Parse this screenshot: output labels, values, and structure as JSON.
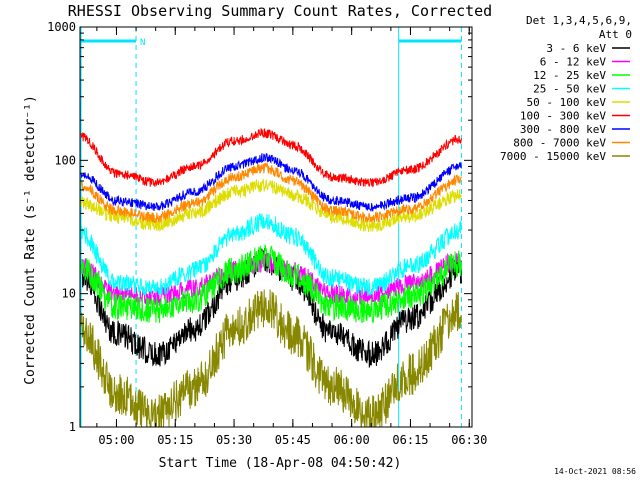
{
  "chart_data": {
    "type": "line",
    "title": "RHESSI Observing Summary Count Rates, Corrected",
    "xlabel": "Start Time (18-Apr-08 04:50:42)",
    "ylabel": "Corrected Count Rate (s⁻¹ detector⁻¹)",
    "ylog": true,
    "ylim": [
      1,
      1000
    ],
    "xlim": [
      "04:50:42",
      "06:30:42"
    ],
    "x_ticks": [
      "05:00",
      "05:15",
      "05:30",
      "05:45",
      "06:00",
      "06:15",
      "06:30"
    ],
    "y_ticks": [
      "1",
      "10",
      "100",
      "1000"
    ],
    "legend_title": [
      "Det 1,3,4,5,6,9,",
      "Att 0"
    ],
    "legend_position": "right",
    "timestamp": "14-Oct-2021 08:56",
    "flags": [
      {
        "label": "N",
        "start": "04:50:42",
        "end": "05:05:00"
      },
      {
        "label": "",
        "start": "06:12:00",
        "end": "06:28:00"
      }
    ],
    "series": [
      {
        "name": "3 - 6 keV",
        "color": "#000000",
        "x": [
          "04:51",
          "05:00",
          "05:10",
          "05:20",
          "05:30",
          "05:38",
          "05:45",
          "05:55",
          "06:05",
          "06:15",
          "06:28"
        ],
        "values": [
          14,
          5.0,
          3.5,
          5.5,
          13,
          18,
          13,
          5.0,
          3.5,
          6.5,
          15
        ]
      },
      {
        "name": "6 - 12 keV",
        "color": "#ff00ff",
        "x": [
          "04:51",
          "05:00",
          "05:10",
          "05:20",
          "05:30",
          "05:38",
          "05:45",
          "05:55",
          "06:05",
          "06:15",
          "06:28"
        ],
        "values": [
          16,
          10,
          9.5,
          11,
          15,
          17,
          15,
          10,
          9.5,
          12,
          18
        ]
      },
      {
        "name": "12 - 25 keV",
        "color": "#00ff00",
        "x": [
          "04:51",
          "05:00",
          "05:10",
          "05:20",
          "05:30",
          "05:38",
          "05:45",
          "05:55",
          "06:05",
          "06:15",
          "06:28"
        ],
        "values": [
          16,
          8,
          7.5,
          9,
          15,
          19,
          14,
          8,
          7.5,
          9.5,
          17
        ]
      },
      {
        "name": "25 - 50 keV",
        "color": "#00ffff",
        "x": [
          "04:51",
          "05:00",
          "05:10",
          "05:20",
          "05:30",
          "05:38",
          "05:45",
          "05:55",
          "06:05",
          "06:15",
          "06:28"
        ],
        "values": [
          28,
          12,
          11,
          15,
          28,
          35,
          27,
          13,
          11,
          16,
          30
        ]
      },
      {
        "name": "50 - 100 keV",
        "color": "#dddd00",
        "x": [
          "04:51",
          "05:00",
          "05:10",
          "05:20",
          "05:30",
          "05:38",
          "05:45",
          "05:55",
          "06:05",
          "06:15",
          "06:28"
        ],
        "values": [
          48,
          38,
          33,
          40,
          58,
          65,
          55,
          38,
          32,
          38,
          55
        ]
      },
      {
        "name": "100 - 300 keV",
        "color": "#ff0000",
        "x": [
          "04:51",
          "05:00",
          "05:10",
          "05:20",
          "05:30",
          "05:38",
          "05:45",
          "05:55",
          "06:05",
          "06:15",
          "06:28"
        ],
        "values": [
          150,
          80,
          68,
          90,
          140,
          160,
          130,
          75,
          68,
          85,
          145
        ]
      },
      {
        "name": "300 - 800 keV",
        "color": "#0000ff",
        "x": [
          "04:51",
          "05:00",
          "05:10",
          "05:20",
          "05:30",
          "05:38",
          "05:45",
          "05:55",
          "06:05",
          "06:15",
          "06:28"
        ],
        "values": [
          80,
          50,
          45,
          58,
          90,
          105,
          85,
          50,
          45,
          52,
          90
        ]
      },
      {
        "name": "800 - 7000 keV",
        "color": "#ff8800",
        "x": [
          "04:51",
          "05:00",
          "05:10",
          "05:20",
          "05:30",
          "05:38",
          "05:45",
          "05:55",
          "06:05",
          "06:15",
          "06:28"
        ],
        "values": [
          65,
          42,
          37,
          48,
          75,
          88,
          70,
          42,
          37,
          43,
          72
        ]
      },
      {
        "name": "7000 - 15000 keV",
        "color": "#888800",
        "x": [
          "04:51",
          "05:00",
          "05:10",
          "05:20",
          "05:30",
          "05:38",
          "05:45",
          "05:55",
          "06:05",
          "06:15",
          "06:28"
        ],
        "values": [
          5.5,
          1.8,
          1.2,
          2.0,
          5.5,
          8,
          5.0,
          2.0,
          1.2,
          2.5,
          7.5
        ]
      }
    ]
  }
}
